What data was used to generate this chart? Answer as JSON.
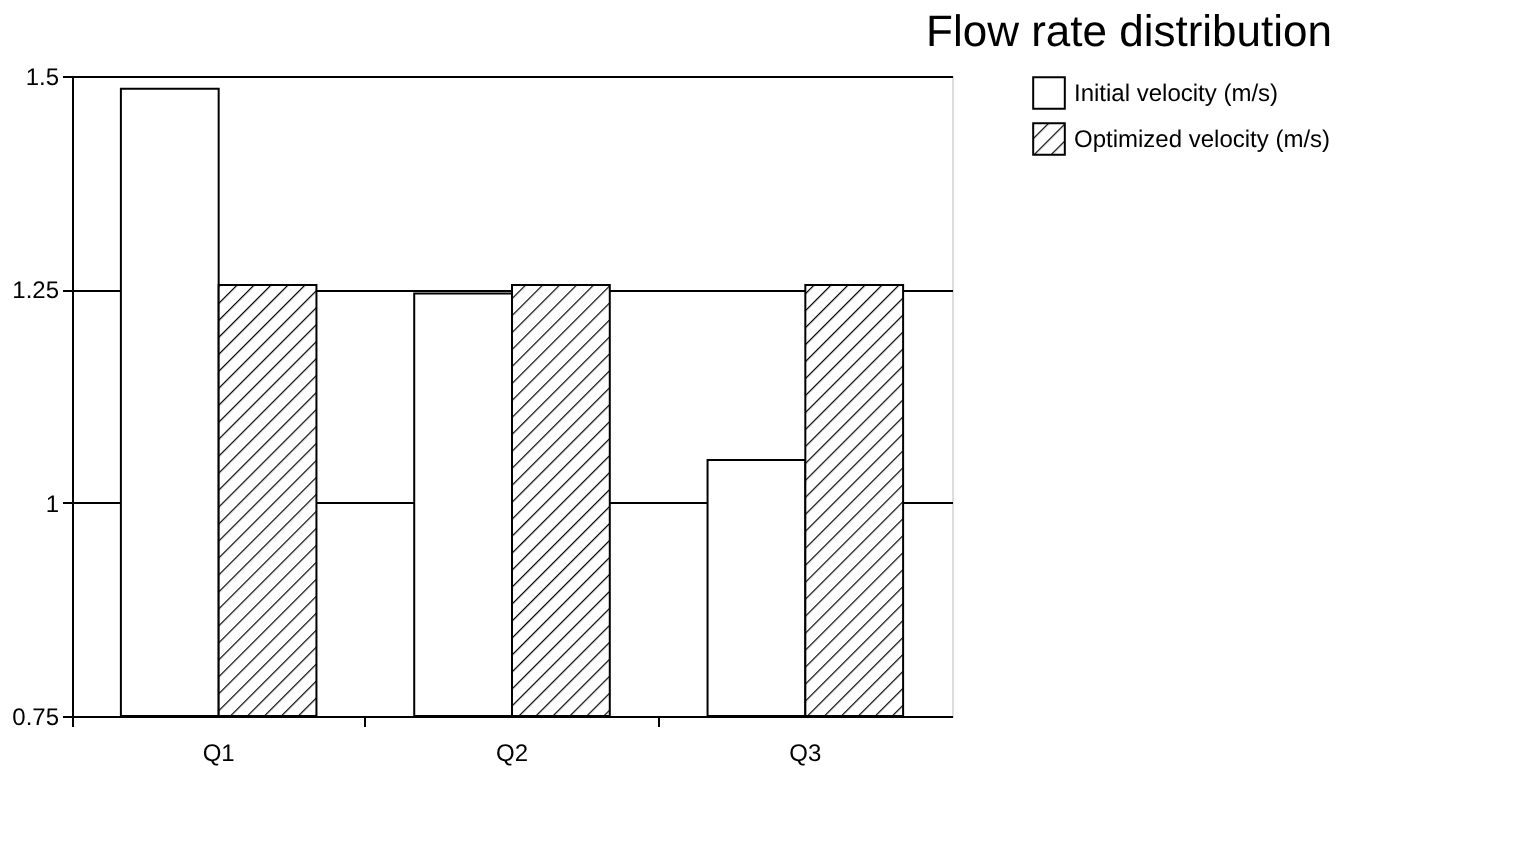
{
  "chart_data": {
    "type": "bar",
    "title": "Flow rate distribution",
    "categories": [
      "Q1",
      "Q2",
      "Q3"
    ],
    "series": [
      {
        "name": "Initial velocity (m/s)",
        "color": "#ffffff",
        "values": [
          1.485,
          1.245,
          1.05
        ]
      },
      {
        "name": "Optimized velocity (m/s)",
        "color": "#000000",
        "values": [
          1.255,
          1.255,
          1.255
        ]
      }
    ],
    "ylim": [
      0.75,
      1.5
    ],
    "yticks": [
      0.75,
      1,
      1.25,
      1.5
    ],
    "grid": "y",
    "legend": "right"
  }
}
